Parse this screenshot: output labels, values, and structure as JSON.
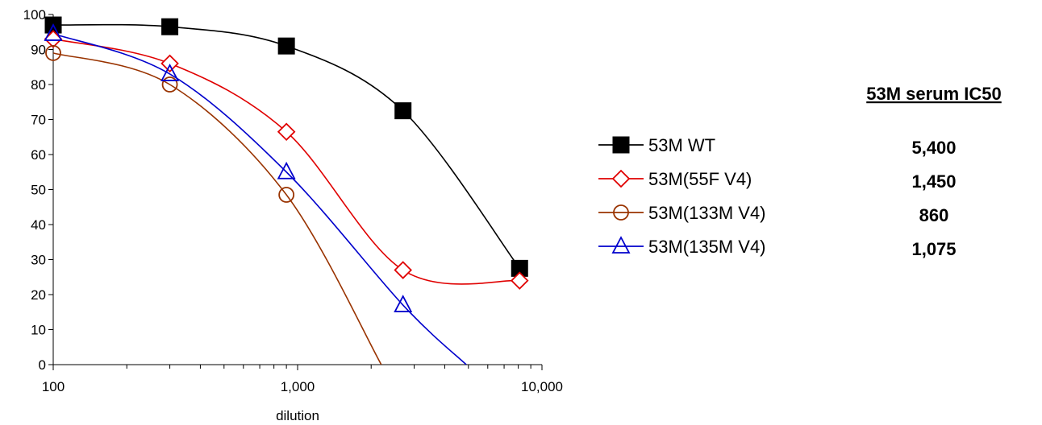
{
  "chart_data": {
    "type": "line",
    "xlabel": "dilution",
    "ylabel": "",
    "xscale": "log",
    "xlim": [
      100,
      10000
    ],
    "ylim": [
      0,
      100
    ],
    "xticks": [
      100,
      1000,
      10000
    ],
    "xtick_labels": [
      "100",
      "1,000",
      "10,000"
    ],
    "yticks": [
      0,
      10,
      20,
      30,
      40,
      50,
      60,
      70,
      80,
      90,
      100
    ],
    "ytick_labels": [
      "0",
      "10",
      "20",
      "30",
      "40",
      "50",
      "60",
      "70",
      "80",
      "90",
      "100"
    ],
    "grid": false,
    "legend_position": "right",
    "series": [
      {
        "name": "53M WT",
        "color": "#000000",
        "marker": "filled-square",
        "x": [
          100,
          300,
          900,
          2700,
          8100
        ],
        "y": [
          97,
          96.5,
          91,
          72.5,
          27.5
        ],
        "curve_extends_to_x": null
      },
      {
        "name": "53M(55F V4)",
        "color": "#e00000",
        "marker": "open-diamond",
        "x": [
          100,
          300,
          900,
          2700,
          8100
        ],
        "y": [
          93,
          86,
          66.5,
          27,
          24
        ],
        "curve_extends_to_x": null
      },
      {
        "name": "53M(133M V4)",
        "color": "#993300",
        "marker": "open-circle",
        "x": [
          100,
          300,
          900
        ],
        "y": [
          89,
          80,
          48.5
        ],
        "curve_extends_to_x": 2200
      },
      {
        "name": "53M(135M V4)",
        "color": "#0000cc",
        "marker": "open-triangle",
        "x": [
          100,
          300,
          900,
          2700
        ],
        "y": [
          94.5,
          83,
          55,
          17
        ],
        "curve_extends_to_x": 4900
      }
    ]
  },
  "ic50_table": {
    "title": "53M serum IC50",
    "values": [
      "5,400",
      "1,450",
      "860",
      "1,075"
    ]
  }
}
